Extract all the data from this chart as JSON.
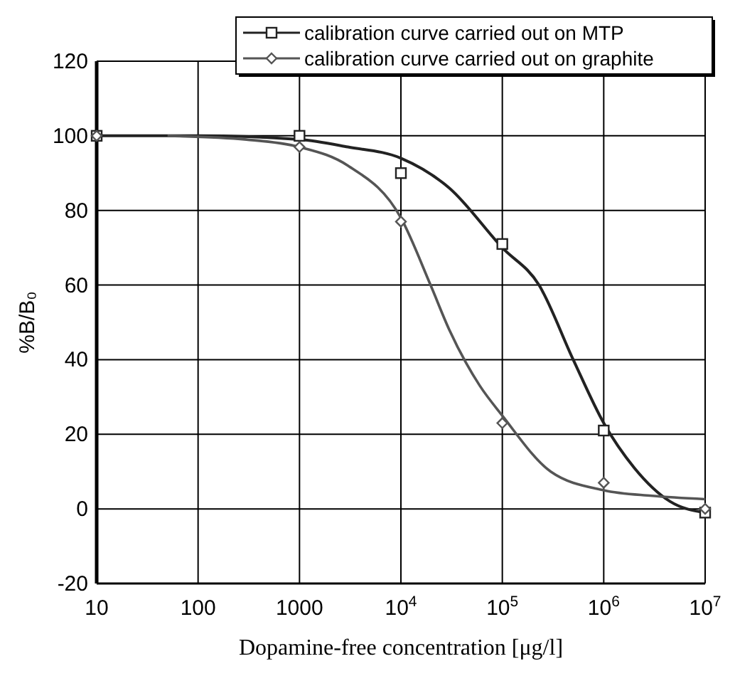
{
  "chart_data": {
    "type": "scatter",
    "xlabel": "Dopamine-free concentration [μg/l]",
    "ylabel": "%B/B₀",
    "log": "x",
    "grid": true,
    "legend": "top right",
    "xlim": [
      10,
      10000000
    ],
    "xticks": [
      10,
      100,
      1000,
      {
        "value": 10000,
        "label": "10$^{4}$"
      },
      {
        "value": 100000,
        "label": "10$^{5}$"
      },
      {
        "value": 1000000,
        "label": "10$^{6}$"
      },
      {
        "value": 10000000,
        "label": "10$^{7}$"
      }
    ],
    "ylim": [
      -20,
      120
    ],
    "yticks": [
      -20,
      0,
      20,
      40,
      60,
      80,
      100,
      120
    ],
    "series": [
      {
        "name": "calibration curve carried out on MTP",
        "color": "#222222",
        "marker": "square",
        "x": [
          10,
          1000,
          10000,
          100000,
          1000000,
          10000000
        ],
        "values": [
          100,
          100,
          90,
          71,
          21,
          -1
        ]
      },
      {
        "name": "calibration curve carried out on graphite",
        "color": "#555555",
        "marker": "diamond",
        "x": [
          10,
          1000,
          10000,
          100000,
          1000000,
          10000000
        ],
        "values": [
          100,
          97,
          77,
          23,
          7,
          0
        ]
      },
      {
        "type": "line",
        "color": "#222222",
        "x": [
          10,
          100,
          1000,
          3000,
          10000,
          30000,
          100000,
          230000,
          500000,
          1000000,
          2000000,
          4500000,
          10000000
        ],
        "values": [
          100,
          100,
          99,
          97,
          94,
          86,
          70,
          60,
          40,
          23,
          11,
          2,
          -1
        ]
      },
      {
        "type": "line",
        "color": "#555555",
        "x": [
          50,
          300,
          1000,
          3000,
          10000,
          19600,
          30000,
          60000,
          100000,
          300000,
          1000000,
          3000000,
          10000000
        ],
        "values": [
          100,
          99,
          97,
          92,
          78,
          60,
          48,
          33,
          25,
          10,
          5,
          3.5,
          2.6
        ]
      }
    ]
  }
}
